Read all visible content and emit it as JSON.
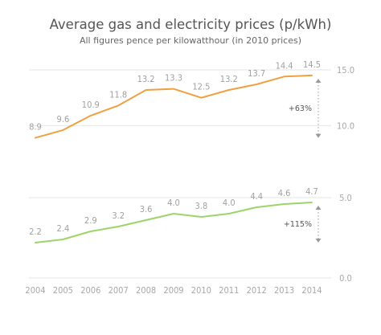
{
  "colors": {
    "electricity": "#f0a040",
    "gas": "#9dd46a",
    "text": "#555555",
    "muted": "#a7a7a7",
    "grid": "#e6e6e6",
    "bracket": "#999999"
  },
  "chart_data": {
    "type": "line",
    "title": "Average gas and electricity prices (p/kWh)",
    "subtitle": "All figures pence per kilowatthour (in 2010 prices)",
    "x": [
      "2004",
      "2005",
      "2006",
      "2007",
      "2008",
      "2009",
      "2010",
      "2011",
      "2012",
      "2013",
      "2014"
    ],
    "series": [
      {
        "key": "electricity",
        "values": [
          8.9,
          9.6,
          10.9,
          11.8,
          13.2,
          13.3,
          12.5,
          13.2,
          13.7,
          14.4,
          14.5
        ],
        "labels": [
          "8.9",
          "9.6",
          "10.9",
          "11.8",
          "13.2",
          "13.3",
          "12.5",
          "13.2",
          "13.7",
          "14.4",
          "14.5"
        ],
        "change": "+63%"
      },
      {
        "key": "gas",
        "values": [
          2.2,
          2.4,
          2.9,
          3.2,
          3.6,
          4.0,
          3.8,
          4.0,
          4.4,
          4.6,
          4.7
        ],
        "labels": [
          "2.2",
          "2.4",
          "2.9",
          "3.2",
          "3.6",
          "4.0",
          "3.8",
          "4.0",
          "4.4",
          "4.6",
          "4.7"
        ],
        "change": "+115%"
      }
    ],
    "y_ticks_top": [
      "15.0",
      "10.0"
    ],
    "y_ticks_bottom": [
      "5.0",
      "0.0"
    ],
    "ylim_top": [
      7,
      15
    ],
    "ylim_bottom": [
      0,
      5
    ],
    "grid": true,
    "legend": "none"
  }
}
